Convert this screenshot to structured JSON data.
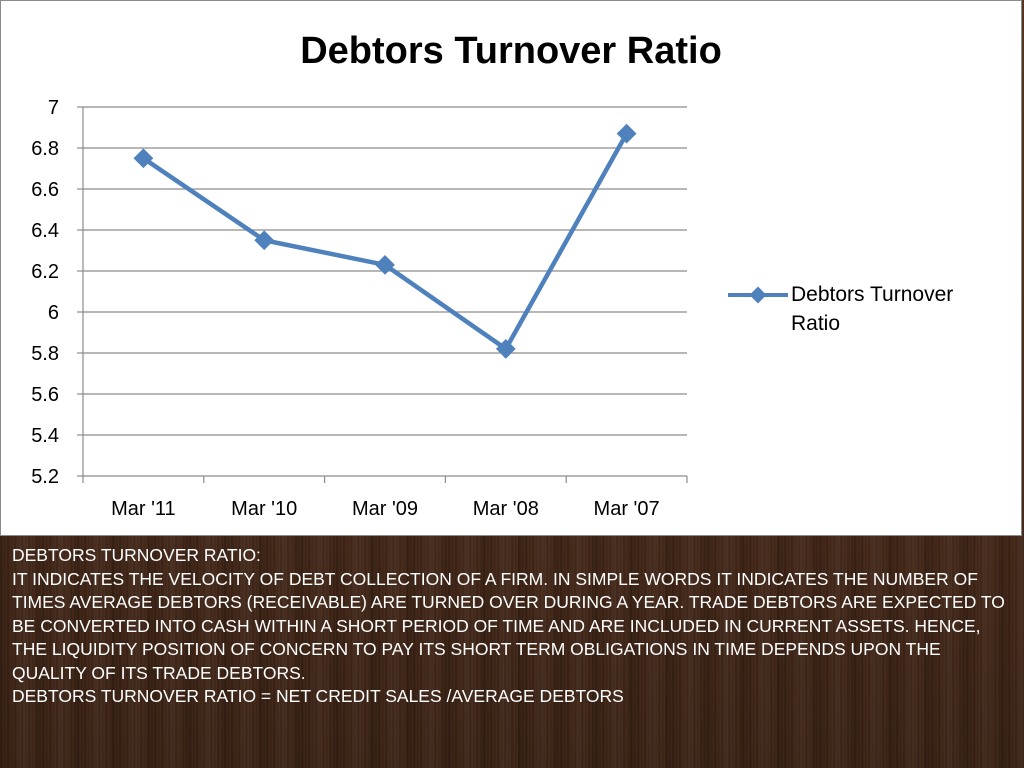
{
  "chart_data": {
    "type": "line",
    "title": "Debtors Turnover Ratio",
    "categories": [
      "Mar '11",
      "Mar '10",
      "Mar '09",
      "Mar '08",
      "Mar '07"
    ],
    "series": [
      {
        "name": "Debtors Turnover Ratio",
        "values": [
          6.75,
          6.35,
          6.23,
          5.82,
          6.87
        ]
      }
    ],
    "ylim": [
      5.2,
      7
    ],
    "yticks": [
      "7",
      "6.8",
      "6.6",
      "6.4",
      "6.2",
      "6",
      "5.8",
      "5.6",
      "5.4",
      "5.2"
    ],
    "grid": true,
    "legend_position": "right",
    "line_color": "#4f81bd"
  },
  "description": {
    "lines": [
      "DEBTORS TURNOVER RATIO:",
      "IT INDICATES THE VELOCITY OF DEBT COLLECTION OF A FIRM. IN SIMPLE WORDS IT INDICATES THE NUMBER OF TIMES AVERAGE DEBTORS (RECEIVABLE) ARE TURNED OVER DURING A YEAR. TRADE DEBTORS ARE EXPECTED TO BE CONVERTED INTO CASH WITHIN A SHORT PERIOD OF TIME AND ARE INCLUDED IN CURRENT ASSETS. HENCE, THE LIQUIDITY POSITION OF CONCERN TO PAY ITS SHORT TERM OBLIGATIONS IN TIME DEPENDS UPON THE QUALITY OF ITS TRADE DEBTORS.",
      "DEBTORS TURNOVER RATIO = NET CREDIT SALES /AVERAGE DEBTORS"
    ]
  }
}
